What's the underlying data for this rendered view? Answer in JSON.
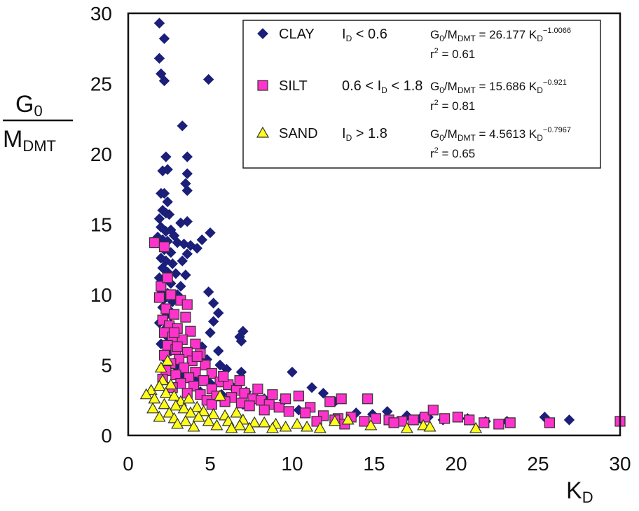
{
  "chart_data": {
    "type": "scatter",
    "xlabel": {
      "main": "K",
      "sub": "D"
    },
    "ylabel": {
      "num_main": "G",
      "num_sub": "0",
      "den_main": "M",
      "den_sub": "DMT"
    },
    "xlim": [
      0,
      30
    ],
    "ylim": [
      0,
      30
    ],
    "xticks": [
      0,
      5,
      10,
      15,
      20,
      25,
      30
    ],
    "yticks": [
      0,
      5,
      10,
      15,
      20,
      25,
      30
    ],
    "grid": false,
    "legend_position": "top-right",
    "colors": {
      "clay": "#1b1f7a",
      "silt": "#ff33cc",
      "sand": "#ffff1a",
      "edge": "#333333"
    },
    "series": [
      {
        "name": "CLAY",
        "marker": "diamond",
        "condition": {
          "a": "I",
          "a_sub": "D",
          "b": " < 0.6"
        },
        "equation": {
          "g": "G",
          "g_sub": "0",
          "m": "/M",
          "m_sub": "DMT",
          "eq": " = 26.177 K",
          "k_sub": "D",
          "exp": "−1.0066"
        },
        "r2": {
          "r": "r",
          "sup": "2",
          "val": " = 0.61"
        },
        "points": [
          [
            1.9,
            29.3
          ],
          [
            2.2,
            28.2
          ],
          [
            1.9,
            26.8
          ],
          [
            2.0,
            25.7
          ],
          [
            2.2,
            25.2
          ],
          [
            4.9,
            25.3
          ],
          [
            3.3,
            22.0
          ],
          [
            2.3,
            19.8
          ],
          [
            3.6,
            19.8
          ],
          [
            2.1,
            18.8
          ],
          [
            2.4,
            18.9
          ],
          [
            3.6,
            18.6
          ],
          [
            3.5,
            17.9
          ],
          [
            3.6,
            17.4
          ],
          [
            2.0,
            17.2
          ],
          [
            2.2,
            17.2
          ],
          [
            2.4,
            16.6
          ],
          [
            2.1,
            16.0
          ],
          [
            2.3,
            15.8
          ],
          [
            2.5,
            15.7
          ],
          [
            1.9,
            15.4
          ],
          [
            3.2,
            15.1
          ],
          [
            3.6,
            15.2
          ],
          [
            2.0,
            14.8
          ],
          [
            2.3,
            14.5
          ],
          [
            2.6,
            14.6
          ],
          [
            2.8,
            14.2
          ],
          [
            5.0,
            14.4
          ],
          [
            1.8,
            14.1
          ],
          [
            2.1,
            13.9
          ],
          [
            2.4,
            13.8
          ],
          [
            3.0,
            13.7
          ],
          [
            3.4,
            13.6
          ],
          [
            3.8,
            13.5
          ],
          [
            4.5,
            13.9
          ],
          [
            4.2,
            13.3
          ],
          [
            2.2,
            13.2
          ],
          [
            2.6,
            13.0
          ],
          [
            3.6,
            12.9
          ],
          [
            2.0,
            12.6
          ],
          [
            2.3,
            12.4
          ],
          [
            2.7,
            12.2
          ],
          [
            3.3,
            12.4
          ],
          [
            2.1,
            11.9
          ],
          [
            2.4,
            11.6
          ],
          [
            2.9,
            11.5
          ],
          [
            3.5,
            11.4
          ],
          [
            1.9,
            11.2
          ],
          [
            2.2,
            11.0
          ],
          [
            2.6,
            10.8
          ],
          [
            3.2,
            10.6
          ],
          [
            2.0,
            10.3
          ],
          [
            2.4,
            10.1
          ],
          [
            3.0,
            10.0
          ],
          [
            4.9,
            10.2
          ],
          [
            2.2,
            9.7
          ],
          [
            2.7,
            9.5
          ],
          [
            5.2,
            9.4
          ],
          [
            2.1,
            9.1
          ],
          [
            2.5,
            8.9
          ],
          [
            5.5,
            8.7
          ],
          [
            2.3,
            8.5
          ],
          [
            5.2,
            8.1
          ],
          [
            1.9,
            8.0
          ],
          [
            2.6,
            7.9
          ],
          [
            7.0,
            7.4
          ],
          [
            2.2,
            7.5
          ],
          [
            5.0,
            7.3
          ],
          [
            6.8,
            7.0
          ],
          [
            2.4,
            7.0
          ],
          [
            6.9,
            6.7
          ],
          [
            2.0,
            6.5
          ],
          [
            4.5,
            6.3
          ],
          [
            2.6,
            6.0
          ],
          [
            5.5,
            6.0
          ],
          [
            2.2,
            5.5
          ],
          [
            4.8,
            5.4
          ],
          [
            5.6,
            5.0
          ],
          [
            2.9,
            4.9
          ],
          [
            6.0,
            4.7
          ],
          [
            6.9,
            4.5
          ],
          [
            10.0,
            4.5
          ],
          [
            3.3,
            4.2
          ],
          [
            4.1,
            3.9
          ],
          [
            5.0,
            3.7
          ],
          [
            6.4,
            3.4
          ],
          [
            7.2,
            3.1
          ],
          [
            11.2,
            3.4
          ],
          [
            11.9,
            3.0
          ],
          [
            4.4,
            3.1
          ],
          [
            5.7,
            2.9
          ],
          [
            8.3,
            2.6
          ],
          [
            9.5,
            2.5
          ],
          [
            12.6,
            2.4
          ],
          [
            7.0,
            2.2
          ],
          [
            9.2,
            2.0
          ],
          [
            10.4,
            1.8
          ],
          [
            13.9,
            1.6
          ],
          [
            14.9,
            1.5
          ],
          [
            15.8,
            1.7
          ],
          [
            17.0,
            1.4
          ],
          [
            17.8,
            1.2
          ],
          [
            18.3,
            1.3
          ],
          [
            19.2,
            1.1
          ],
          [
            20.7,
            1.2
          ],
          [
            21.8,
            1.0
          ],
          [
            23.1,
            1.0
          ],
          [
            25.4,
            1.3
          ],
          [
            26.9,
            1.1
          ]
        ]
      },
      {
        "name": "SILT",
        "marker": "square",
        "condition": {
          "a": "0.6 < I",
          "a_sub": "D",
          "b": " < 1.8"
        },
        "equation": {
          "g": "G",
          "g_sub": "0",
          "m": "/M",
          "m_sub": "DMT",
          "eq": " = 15.686 K",
          "k_sub": "D",
          "exp": "−0.921"
        },
        "r2": {
          "r": "r",
          "sup": "2",
          "val": " = 0.81"
        },
        "points": [
          [
            1.6,
            13.7
          ],
          [
            2.2,
            13.4
          ],
          [
            2.0,
            10.6
          ],
          [
            1.9,
            9.8
          ],
          [
            2.6,
            10.0
          ],
          [
            3.2,
            9.6
          ],
          [
            2.3,
            9.0
          ],
          [
            2.8,
            8.6
          ],
          [
            2.1,
            8.2
          ],
          [
            3.5,
            8.4
          ],
          [
            2.5,
            7.8
          ],
          [
            3.0,
            7.6
          ],
          [
            2.2,
            7.3
          ],
          [
            3.8,
            7.4
          ],
          [
            2.7,
            7.0
          ],
          [
            3.3,
            6.8
          ],
          [
            4.1,
            6.5
          ],
          [
            2.4,
            6.4
          ],
          [
            2.9,
            6.1
          ],
          [
            3.6,
            5.9
          ],
          [
            2.2,
            5.7
          ],
          [
            4.4,
            5.8
          ],
          [
            3.1,
            5.4
          ],
          [
            3.9,
            5.3
          ],
          [
            2.6,
            5.1
          ],
          [
            4.7,
            5.0
          ],
          [
            3.4,
            4.8
          ],
          [
            2.3,
            4.6
          ],
          [
            4.1,
            4.5
          ],
          [
            5.1,
            4.4
          ],
          [
            2.9,
            4.3
          ],
          [
            3.7,
            4.1
          ],
          [
            2.1,
            4.0
          ],
          [
            4.6,
            3.9
          ],
          [
            5.6,
            3.8
          ],
          [
            3.2,
            3.7
          ],
          [
            4.0,
            3.5
          ],
          [
            6.1,
            3.6
          ],
          [
            2.7,
            3.4
          ],
          [
            5.1,
            3.3
          ],
          [
            6.6,
            3.2
          ],
          [
            3.6,
            3.0
          ],
          [
            4.4,
            2.9
          ],
          [
            7.1,
            3.0
          ],
          [
            5.4,
            2.8
          ],
          [
            6.3,
            2.7
          ],
          [
            7.6,
            2.6
          ],
          [
            4.8,
            2.5
          ],
          [
            8.1,
            2.5
          ],
          [
            5.9,
            2.4
          ],
          [
            6.9,
            2.3
          ],
          [
            8.6,
            2.2
          ],
          [
            7.4,
            2.1
          ],
          [
            9.2,
            2.0
          ],
          [
            5.1,
            2.2
          ],
          [
            10.4,
            2.8
          ],
          [
            12.3,
            2.4
          ],
          [
            11.1,
            2.0
          ],
          [
            9.8,
            1.7
          ],
          [
            13.0,
            2.6
          ],
          [
            14.6,
            2.6
          ],
          [
            8.3,
            1.8
          ],
          [
            10.8,
            1.6
          ],
          [
            11.9,
            1.4
          ],
          [
            12.8,
            1.2
          ],
          [
            13.6,
            1.3
          ],
          [
            14.4,
            1.0
          ],
          [
            15.1,
            1.2
          ],
          [
            15.9,
            1.1
          ],
          [
            16.7,
            1.0
          ],
          [
            17.4,
            1.1
          ],
          [
            18.1,
            1.3
          ],
          [
            18.6,
            1.8
          ],
          [
            19.3,
            1.2
          ],
          [
            20.1,
            1.3
          ],
          [
            20.8,
            1.1
          ],
          [
            21.7,
            0.9
          ],
          [
            22.6,
            0.8
          ],
          [
            23.3,
            0.9
          ],
          [
            25.7,
            0.9
          ],
          [
            30.0,
            1.0
          ],
          [
            16.2,
            0.9
          ],
          [
            13.2,
            0.8
          ],
          [
            11.5,
            1.0
          ],
          [
            12.6,
            1.1
          ],
          [
            4.2,
            5.6
          ],
          [
            3.0,
            6.3
          ],
          [
            5.8,
            4.2
          ],
          [
            6.8,
            3.9
          ],
          [
            7.9,
            3.3
          ],
          [
            8.8,
            2.9
          ],
          [
            9.6,
            2.6
          ],
          [
            2.4,
            11.2
          ],
          [
            3.6,
            9.3
          ],
          [
            2.8,
            7.3
          ]
        ]
      },
      {
        "name": "SAND",
        "marker": "triangle",
        "condition": {
          "a": "I",
          "a_sub": "D",
          "b": " > 1.8"
        },
        "equation": {
          "g": "G",
          "g_sub": "0",
          "m": "/M",
          "m_sub": "DMT",
          "eq": " = 4.5613 K",
          "k_sub": "D",
          "exp": "−0.7967"
        },
        "r2": {
          "r": "r",
          "sup": "2",
          "val": " = 0.65"
        },
        "points": [
          [
            2.4,
            5.3
          ],
          [
            2.0,
            4.8
          ],
          [
            2.1,
            3.9
          ],
          [
            2.6,
            3.6
          ],
          [
            1.4,
            3.2
          ],
          [
            1.9,
            3.5
          ],
          [
            2.3,
            3.0
          ],
          [
            1.1,
            2.9
          ],
          [
            1.6,
            2.6
          ],
          [
            2.8,
            2.8
          ],
          [
            3.2,
            2.4
          ],
          [
            3.7,
            2.6
          ],
          [
            2.2,
            2.2
          ],
          [
            2.9,
            2.1
          ],
          [
            1.5,
            1.9
          ],
          [
            3.4,
            1.9
          ],
          [
            4.2,
            2.0
          ],
          [
            5.6,
            2.8
          ],
          [
            2.5,
            1.6
          ],
          [
            3.8,
            1.6
          ],
          [
            4.6,
            1.7
          ],
          [
            5.2,
            1.5
          ],
          [
            1.9,
            1.3
          ],
          [
            2.8,
            1.2
          ],
          [
            4.3,
            1.3
          ],
          [
            5.9,
            1.4
          ],
          [
            6.6,
            1.6
          ],
          [
            3.5,
            1.0
          ],
          [
            4.9,
            1.0
          ],
          [
            6.1,
            1.0
          ],
          [
            7.0,
            1.1
          ],
          [
            7.7,
            0.9
          ],
          [
            8.3,
            0.9
          ],
          [
            5.4,
            0.7
          ],
          [
            6.8,
            0.7
          ],
          [
            9.0,
            0.8
          ],
          [
            9.6,
            0.6
          ],
          [
            10.3,
            0.8
          ],
          [
            10.9,
            0.6
          ],
          [
            11.7,
            0.5
          ],
          [
            12.6,
            1.0
          ],
          [
            13.4,
            1.1
          ],
          [
            14.8,
            0.7
          ],
          [
            17.0,
            0.5
          ],
          [
            18.0,
            0.7
          ],
          [
            18.4,
            0.6
          ],
          [
            21.2,
            0.5
          ],
          [
            4.0,
            0.6
          ],
          [
            7.4,
            0.5
          ],
          [
            8.8,
            0.5
          ],
          [
            3.0,
            0.8
          ],
          [
            6.3,
            0.5
          ]
        ]
      }
    ]
  }
}
